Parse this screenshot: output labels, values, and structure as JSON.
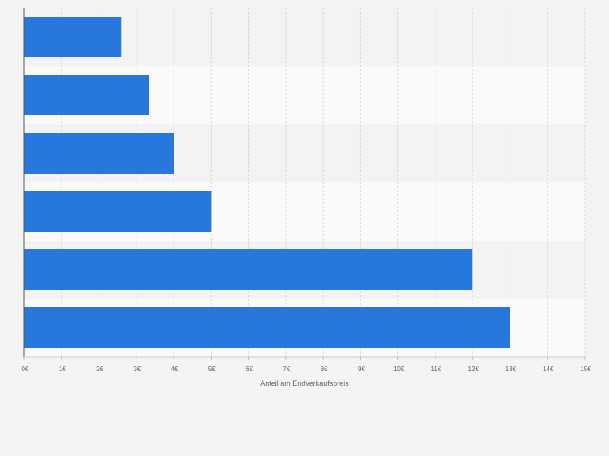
{
  "chart_data": {
    "type": "bar",
    "orientation": "horizontal",
    "categories": [
      "",
      "",
      "",
      "",
      "",
      ""
    ],
    "values": [
      2.6,
      3.35,
      4.0,
      5.0,
      12.0,
      13.0
    ],
    "xlabel": "Anteil am Endverkaufspreis",
    "ylabel": "",
    "xlim": [
      0,
      15
    ],
    "x_ticks": [
      0,
      1,
      2,
      3,
      4,
      5,
      6,
      7,
      8,
      9,
      10,
      11,
      12,
      13,
      14,
      15
    ],
    "x_tick_labels": [
      "0€",
      "1€",
      "2€",
      "3€",
      "4€",
      "5€",
      "6€",
      "7€",
      "8€",
      "9€",
      "10€",
      "11€",
      "12€",
      "13€",
      "14€",
      "15€"
    ],
    "grid": true,
    "legend": "none"
  },
  "colors": {
    "bar": "#2877dd",
    "background": "#f4f4f4",
    "band_light": "#fafafa",
    "band_dark": "#f3f3f3",
    "grid": "#d8d8d8",
    "axis": "#555555",
    "text": "#666666"
  }
}
